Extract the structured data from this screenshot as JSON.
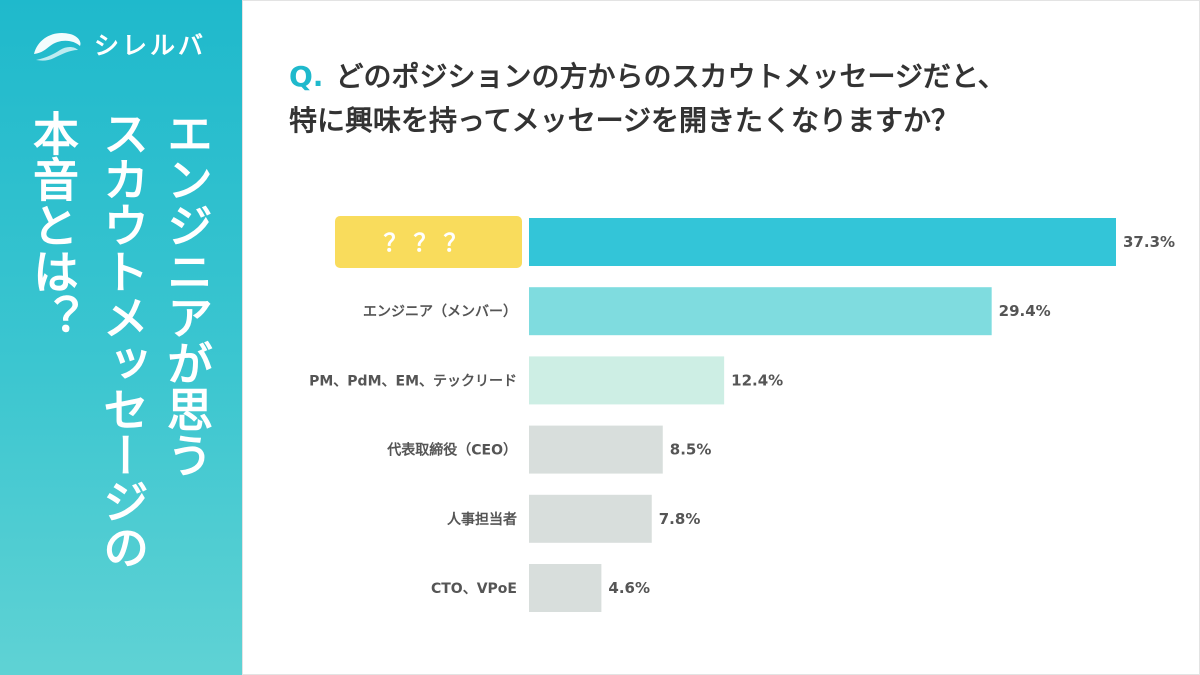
{
  "brand": {
    "name": "シレルバ",
    "colors": {
      "primary": "#1fb9cc",
      "highlight": "#f9dc5c"
    }
  },
  "sidebar": {
    "title_lines": [
      "エンジニアが思う",
      "スカウトメッセージの",
      "本音とは？"
    ]
  },
  "question": {
    "mark": "Q.",
    "text_line1": "どのポジションの方からのスカウトメッセージだと、",
    "text_line2": "特に興味を持ってメッセージを開きたくなりますか？"
  },
  "chart_data": {
    "type": "bar",
    "orientation": "horizontal",
    "title": "どのポジションの方からのスカウトメッセージだと、特に興味を持ってメッセージを開きたくなりますか？",
    "categories": [
      "？？？",
      "エンジニア（メンバー）",
      "PM、PdM、EM、テックリード",
      "代表取締役（CEO）",
      "人事担当者",
      "CTO、VPoE"
    ],
    "values": [
      37.3,
      29.4,
      12.4,
      8.5,
      7.8,
      4.6
    ],
    "value_labels": [
      "37.3%",
      "29.4%",
      "12.4%",
      "8.5%",
      "7.8%",
      "4.6%"
    ],
    "bar_colors": [
      "#33c5d8",
      "#7fdcdf",
      "#cdeee4",
      "#d8dedc",
      "#d8dedc",
      "#d8dedc"
    ],
    "xlim": [
      0,
      37.3
    ],
    "unit": "%",
    "grid": false,
    "legend": "none"
  }
}
